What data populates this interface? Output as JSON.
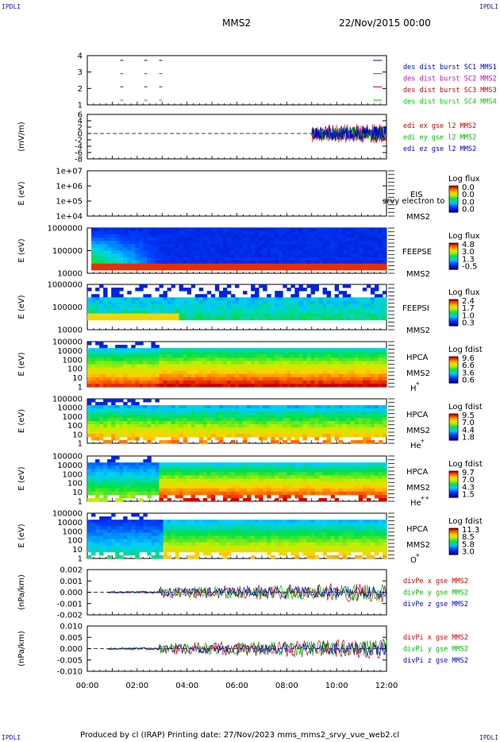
{
  "header": {
    "corner_label": "IPDLI",
    "spacecraft": "MMS2",
    "datetime": "22/Nov/2015 00:00"
  },
  "footer": {
    "text": "Produced by cl (IRAP)   Printing date: 27/Nov/2023   mms_mms2_srvy_vue_web2.cl"
  },
  "x_axis": {
    "ticks": [
      "00:00",
      "02:00",
      "04:00",
      "06:00",
      "08:00",
      "10:00",
      "12:00"
    ]
  },
  "chart_data": [
    {
      "type": "line",
      "id": "dist",
      "yticks": [
        "4",
        "3",
        "2",
        "1"
      ],
      "series": [
        {
          "name": "des dist burst SC1 MMS1",
          "color": "#0000cc"
        },
        {
          "name": "des dist burst SC2 MMS2",
          "color": "#cc00cc"
        },
        {
          "name": "des dist burst SC3 MMS3",
          "color": "#cc0000"
        },
        {
          "name": "des dist burst SC4 MMS4",
          "color": "#00cc00"
        }
      ],
      "xlim": [
        0,
        12
      ]
    },
    {
      "type": "line",
      "id": "edi",
      "ylabel": "(mV/m)",
      "yticks": [
        "6",
        "4",
        "2",
        "0",
        "-2",
        "-4",
        "-6",
        "-8"
      ],
      "series": [
        {
          "name": "edi ex gse l2 MMS2",
          "color": "#cc0000"
        },
        {
          "name": "edi ey gse l2 MMS2",
          "color": "#00bb00"
        },
        {
          "name": "edi ez gse l2 MMS2",
          "color": "#0000cc"
        }
      ],
      "ylim": [
        -8,
        6
      ],
      "xlim": [
        0,
        12
      ]
    },
    {
      "type": "heatmap",
      "id": "eis",
      "ylabel": "E (eV)",
      "yticks": [
        "1e+07",
        "1e+06",
        "1e+05",
        "1e+04"
      ],
      "labels": [
        "EIS",
        "srvy electron to",
        "MMS2"
      ],
      "colorbar": {
        "title": "Log flux",
        "ticks": [
          "0.0",
          "0.0",
          "0.0",
          "0.0"
        ]
      }
    },
    {
      "type": "heatmap",
      "id": "feepse",
      "ylabel": "E (eV)",
      "yticks": [
        "1000000",
        "100000",
        "10000"
      ],
      "labels": [
        "FEEPSE",
        "MMS2"
      ],
      "colorbar": {
        "title": "Log flux",
        "ticks": [
          "4.8",
          "3.0",
          "1.3",
          "-0.5"
        ]
      }
    },
    {
      "type": "heatmap",
      "id": "feepsi",
      "ylabel": "E (eV)",
      "yticks": [
        "1000000",
        "100000",
        "10000"
      ],
      "labels": [
        "FEEPSI",
        "MMS2"
      ],
      "colorbar": {
        "title": "Log flux",
        "ticks": [
          "2.4",
          "1.7",
          "1.0",
          "0.3"
        ]
      }
    },
    {
      "type": "heatmap",
      "id": "hpca_h",
      "ylabel": "E (eV)",
      "yticks": [
        "100000",
        "10000",
        "1000",
        "100",
        "10",
        "1"
      ],
      "labels": [
        "HPCA",
        "MMS2",
        "H",
        "+"
      ],
      "colorbar": {
        "title": "Log fdist",
        "ticks": [
          "9.6",
          "6.6",
          "3.6",
          "0.6"
        ]
      }
    },
    {
      "type": "heatmap",
      "id": "hpca_he",
      "ylabel": "E (eV)",
      "yticks": [
        "100000",
        "10000",
        "1000",
        "100",
        "10",
        "1"
      ],
      "labels": [
        "HPCA",
        "MMS2",
        "He",
        "+"
      ],
      "colorbar": {
        "title": "Log fdist",
        "ticks": [
          "9.5",
          "7.0",
          "4.4",
          "1.8"
        ]
      }
    },
    {
      "type": "heatmap",
      "id": "hpca_hepp",
      "ylabel": "E (eV)",
      "yticks": [
        "100000",
        "10000",
        "1000",
        "100",
        "10",
        "1"
      ],
      "labels": [
        "HPCA",
        "MMS2",
        "He",
        "++"
      ],
      "colorbar": {
        "title": "Log fdist",
        "ticks": [
          "9.7",
          "7.0",
          "4.3",
          "1.5"
        ]
      }
    },
    {
      "type": "heatmap",
      "id": "hpca_o",
      "ylabel": "E (eV)",
      "yticks": [
        "100000",
        "10000",
        "1000",
        "100",
        "10",
        "1"
      ],
      "labels": [
        "HPCA",
        "MMS2",
        "O",
        "+"
      ],
      "colorbar": {
        "title": "Log fdist",
        "ticks": [
          "11.3",
          "8.5",
          "5.8",
          "3.0"
        ]
      }
    },
    {
      "type": "line",
      "id": "divpe",
      "ylabel": "(nPa/km)",
      "yticks": [
        "0.002",
        "0.001",
        "0.000",
        "-0.001",
        "-0.002"
      ],
      "series": [
        {
          "name": "divPe x gse MMS2",
          "color": "#cc0000"
        },
        {
          "name": "divPe y gse MMS2",
          "color": "#00bb00"
        },
        {
          "name": "divPe z gse MMS2",
          "color": "#0000cc"
        }
      ],
      "ylim": [
        -0.0025,
        0.0025
      ],
      "xlim": [
        0,
        12
      ]
    },
    {
      "type": "line",
      "id": "divpi",
      "ylabel": "(nPa/km)",
      "yticks": [
        "0.010",
        "0.005",
        "0.000",
        "-0.005",
        "-0.010"
      ],
      "series": [
        {
          "name": "divPi x gse MMS2",
          "color": "#cc0000"
        },
        {
          "name": "divPi y gse MMS2",
          "color": "#00bb00"
        },
        {
          "name": "divPi z gse MMS2",
          "color": "#0000cc"
        }
      ],
      "ylim": [
        -0.012,
        0.012
      ],
      "xlim": [
        0,
        12
      ]
    }
  ]
}
